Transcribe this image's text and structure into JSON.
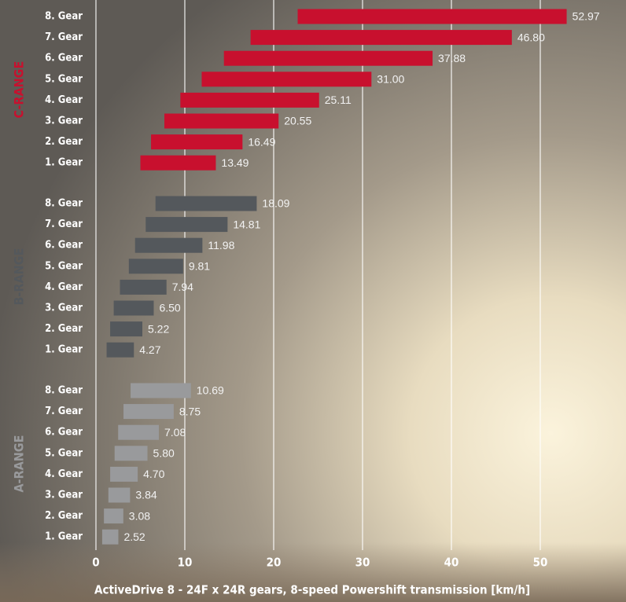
{
  "chart_data": {
    "type": "range-bar",
    "title": "ActiveDrive 8 - 24F x 24R gears, 8-speed Powershift transmission [km/h]",
    "xlim": [
      0,
      60
    ],
    "xticks": [
      0,
      10,
      20,
      30,
      40,
      50
    ],
    "grid": true,
    "series": [
      {
        "name": "C-RANGE",
        "color": "#c8102e",
        "categories": [
          "8. Gear",
          "7. Gear",
          "6. Gear",
          "5. Gear",
          "4. Gear",
          "3. Gear",
          "2. Gear",
          "1. Gear"
        ],
        "starts": [
          22.7,
          17.4,
          14.4,
          11.9,
          9.5,
          7.7,
          6.2,
          5.0
        ],
        "values": [
          52.97,
          46.8,
          37.88,
          31,
          25.11,
          20.55,
          16.49,
          13.49
        ],
        "value_labels": [
          "52.97",
          "46.80",
          "37.88",
          "31.00",
          "25.11",
          "20.55",
          "16.49",
          "13.49"
        ]
      },
      {
        "name": "B-RANGE",
        "color": "#54585c",
        "categories": [
          "8. Gear",
          "7. Gear",
          "6. Gear",
          "5. Gear",
          "4. Gear",
          "3. Gear",
          "2. Gear",
          "1. Gear"
        ],
        "starts": [
          6.7,
          5.6,
          4.4,
          3.7,
          2.7,
          2.0,
          1.6,
          1.2
        ],
        "values": [
          18.09,
          14.81,
          11.98,
          9.81,
          7.94,
          6.5,
          5.22,
          4.27
        ],
        "value_labels": [
          "18.09",
          "14.81",
          "11.98",
          "9.81",
          "7.94",
          "6.50",
          "5.22",
          "4.27"
        ]
      },
      {
        "name": "A-RANGE",
        "color": "#999a9c",
        "categories": [
          "8. Gear",
          "7. Gear",
          "6. Gear",
          "5. Gear",
          "4. Gear",
          "3. Gear",
          "2. Gear",
          "1. Gear"
        ],
        "starts": [
          3.9,
          3.1,
          2.5,
          2.1,
          1.6,
          1.4,
          0.9,
          0.7
        ],
        "values": [
          10.69,
          8.75,
          7.08,
          5.8,
          4.7,
          3.84,
          3.08,
          2.52
        ],
        "value_labels": [
          "10.69",
          "8.75",
          "7.08",
          "5.80",
          "4.70",
          "3.84",
          "3.08",
          "2.52"
        ]
      }
    ]
  }
}
